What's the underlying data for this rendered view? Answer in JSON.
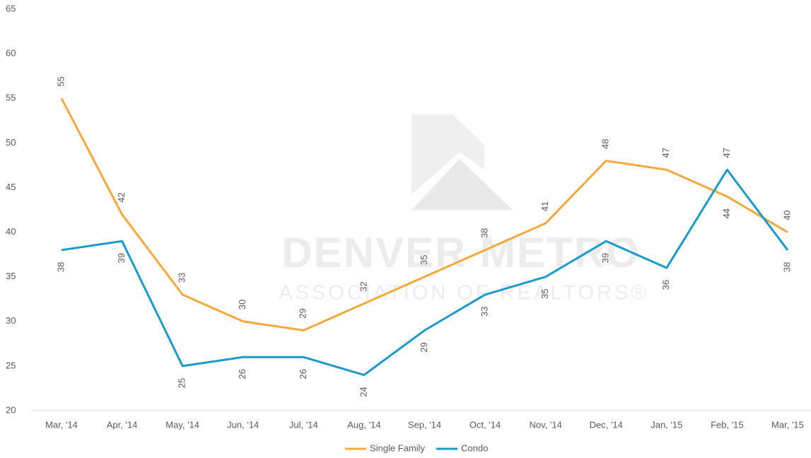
{
  "watermark": [
    "DENVER METRO",
    "ASSOCIATION OF REALTORS®"
  ],
  "chart_data": {
    "type": "line",
    "categories": [
      "Mar, '14",
      "Apr, '14",
      "May, '14",
      "Jun, '14",
      "Jul, '14",
      "Aug, '14",
      "Sep, '14",
      "Oct, '14",
      "Nov, '14",
      "Dec, '14",
      "Jan, '15",
      "Feb, '15",
      "Mar, '15"
    ],
    "series": [
      {
        "name": "Single Family",
        "color": "#f5a93c",
        "values": [
          55,
          42,
          33,
          30,
          29,
          32,
          35,
          38,
          41,
          48,
          47,
          44,
          40
        ]
      },
      {
        "name": "Condo",
        "color": "#1b9acb",
        "values": [
          38,
          39,
          25,
          26,
          26,
          24,
          29,
          33,
          35,
          39,
          36,
          47,
          38
        ]
      }
    ],
    "ylim": [
      20,
      65
    ],
    "yticks": [
      20,
      25,
      30,
      35,
      40,
      45,
      50,
      55,
      60,
      65
    ],
    "grid": false,
    "legend": "bottom"
  }
}
